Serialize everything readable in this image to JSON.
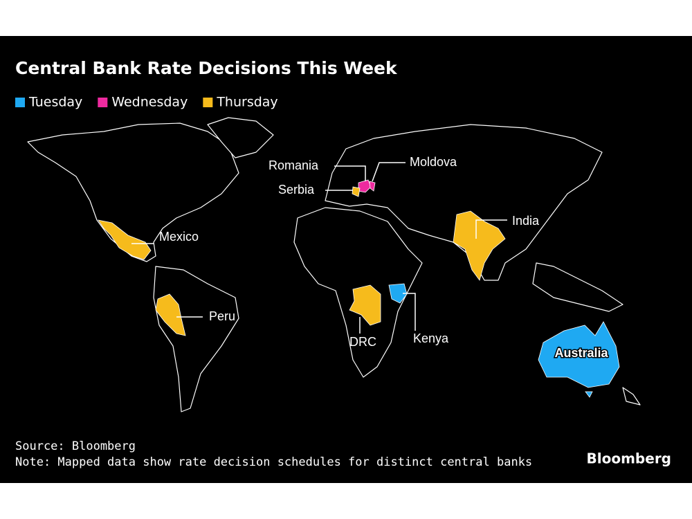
{
  "title": "Central Bank Rate Decisions This Week",
  "legend": [
    {
      "label": "Tuesday",
      "color": "#1fa9f2",
      "countries": [
        "Kenya",
        "Australia"
      ]
    },
    {
      "label": "Wednesday",
      "color": "#ee2a9f",
      "countries": [
        "Romania",
        "Moldova"
      ]
    },
    {
      "label": "Thursday",
      "color": "#f6bb1c",
      "countries": [
        "Serbia",
        "Mexico",
        "Peru",
        "DRC",
        "India"
      ]
    }
  ],
  "source": "Source: Bloomberg",
  "note": "Note: Mapped data show rate decision schedules for distinct central banks",
  "logo": "Bloomberg"
}
